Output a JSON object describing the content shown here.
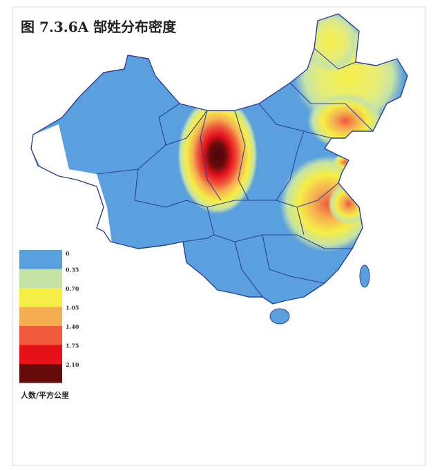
{
  "title": "图 7.3.6A  郜姓分布密度",
  "legend": {
    "items": [
      {
        "label": "0",
        "color": "#5aa0de"
      },
      {
        "label": "0.35",
        "color": "#c6e3a6"
      },
      {
        "label": "0.70",
        "color": "#f6ee45"
      },
      {
        "label": "1.05",
        "color": "#f5ae52"
      },
      {
        "label": "1.40",
        "color": "#ef5a3c"
      },
      {
        "label": "1.75",
        "color": "#e5121c"
      },
      {
        "label": "2.10",
        "color": "#650b0b"
      }
    ],
    "unit": "人数/平方公里"
  }
}
